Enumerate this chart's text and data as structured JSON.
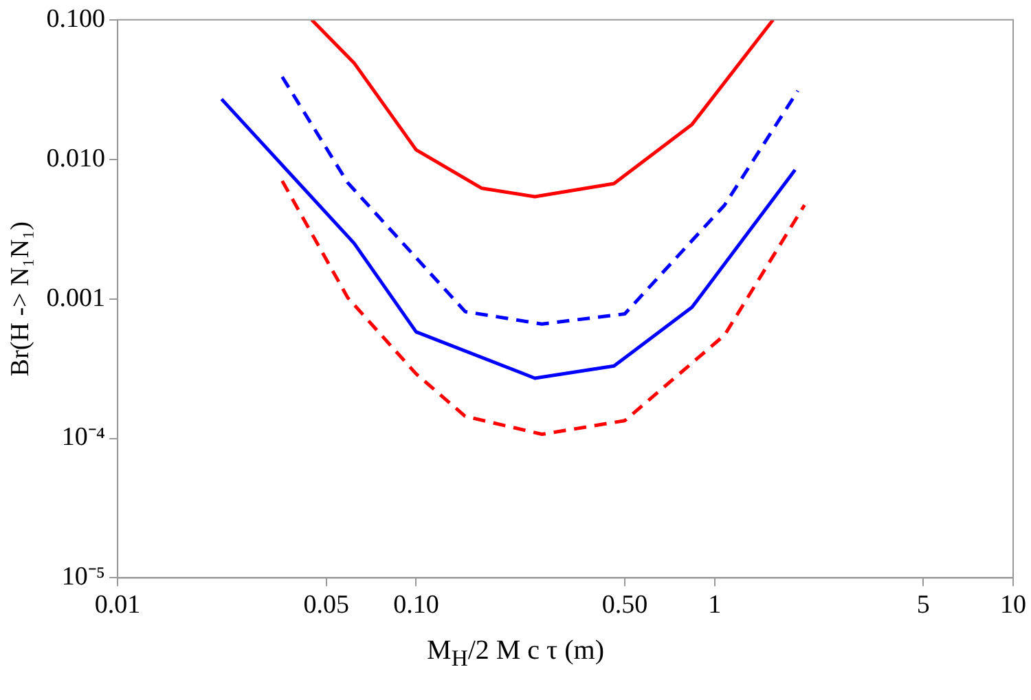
{
  "chart_data": {
    "type": "line",
    "xlabel": "M$_{H}$/2 M c τ (m)",
    "ylabel": "Br(H -> N₁N₁)",
    "log": "xy",
    "grid": false,
    "legend": false,
    "marker": "none",
    "xlim": [
      0.01,
      10
    ],
    "xticks": [
      0.01,
      0.05,
      {
        "value": 0.1,
        "label": "0.10"
      },
      {
        "value": 0.5,
        "label": "0.50"
      },
      1,
      5,
      10
    ],
    "ylim": [
      1e-05,
      0.1
    ],
    "yticks": [
      {
        "value": 1e-05,
        "label": "10⁻⁵"
      },
      {
        "value": 0.0001,
        "label": "10⁻⁴"
      },
      {
        "value": 0.001,
        "label": "0.001"
      },
      {
        "value": 0.01,
        "label": "0.010"
      },
      {
        "value": 0.1,
        "label": "0.100"
      }
    ],
    "series": [
      {
        "color": "#ff0000",
        "line_style": "solid",
        "x": [
          0.0447,
          0.062,
          0.1,
          0.166,
          0.25,
          0.46,
          0.84,
          1.57
        ],
        "values": [
          0.1,
          0.049,
          0.0117,
          0.0062,
          0.0054,
          0.0067,
          0.0178,
          0.1
        ]
      },
      {
        "color": "#0000ff",
        "line_style": "dashed",
        "x": [
          0.0356,
          0.059,
          0.1,
          0.146,
          0.264,
          0.5,
          1.08,
          1.9
        ],
        "values": [
          0.039,
          0.0068,
          0.00197,
          0.00081,
          0.00066,
          0.00078,
          0.0047,
          0.031
        ]
      },
      {
        "color": "#0000ff",
        "line_style": "solid",
        "x": [
          0.0223,
          0.062,
          0.1,
          0.25,
          0.46,
          0.84,
          1.86
        ],
        "values": [
          0.027,
          0.0025,
          0.00058,
          0.00027,
          0.00033,
          0.00087,
          0.0084
        ]
      },
      {
        "color": "#ff0000",
        "line_style": "dashed",
        "x": [
          0.0356,
          0.059,
          0.1,
          0.146,
          0.264,
          0.5,
          1.08,
          2.0
        ],
        "values": [
          0.007,
          0.00102,
          0.00029,
          0.000144,
          0.000107,
          0.000134,
          0.00055,
          0.0047
        ]
      }
    ]
  }
}
